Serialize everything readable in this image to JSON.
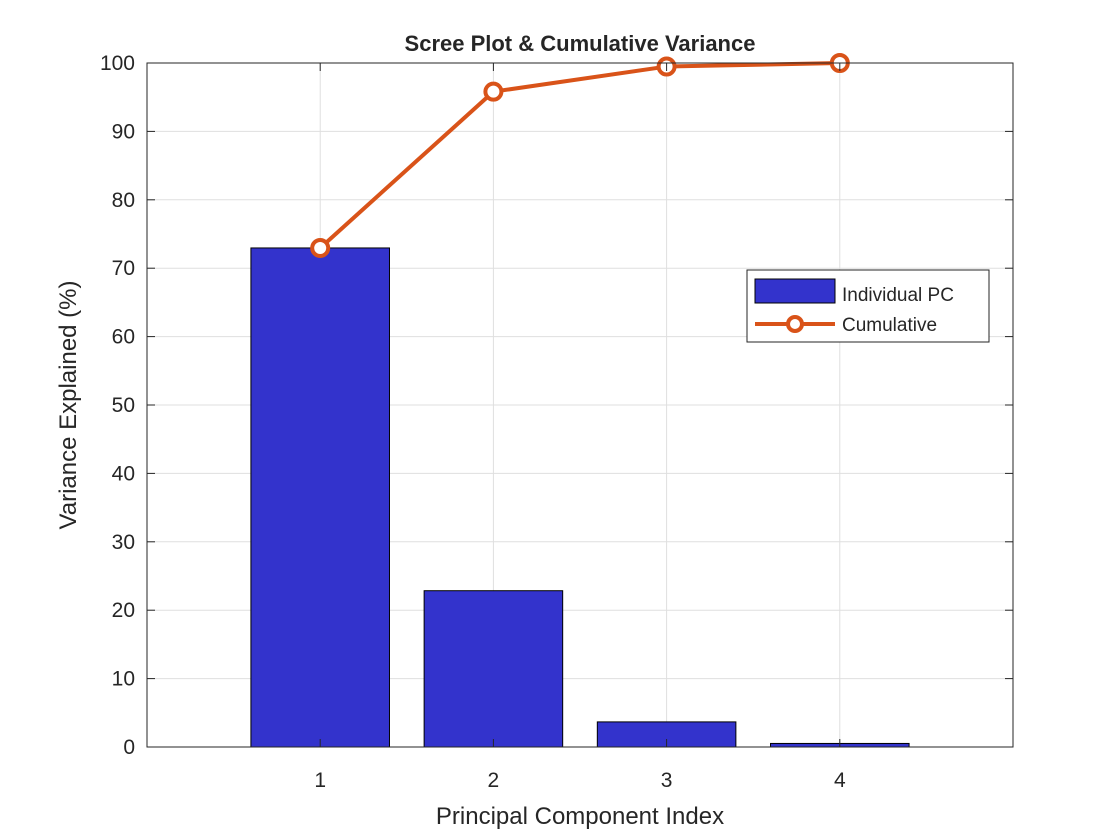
{
  "chart_data": {
    "type": "bar",
    "title": "Scree Plot & Cumulative Variance",
    "xlabel": "Principal Component Index",
    "ylabel": "Variance Explained (%)",
    "categories": [
      "1",
      "2",
      "3",
      "4"
    ],
    "x": [
      1,
      2,
      3,
      4
    ],
    "xlim": [
      0,
      5
    ],
    "ylim": [
      0,
      100
    ],
    "yticks": [
      0,
      10,
      20,
      30,
      40,
      50,
      60,
      70,
      80,
      90,
      100
    ],
    "grid": true,
    "legend_position": "right",
    "series": [
      {
        "name": "Individual PC",
        "kind": "bar",
        "color": "#3333cc",
        "values": [
          72.96,
          22.85,
          3.67,
          0.52
        ]
      },
      {
        "name": "Cumulative",
        "kind": "line",
        "marker": "circle",
        "color": "#d95319",
        "values": [
          72.96,
          95.81,
          99.48,
          100.0
        ]
      }
    ]
  }
}
